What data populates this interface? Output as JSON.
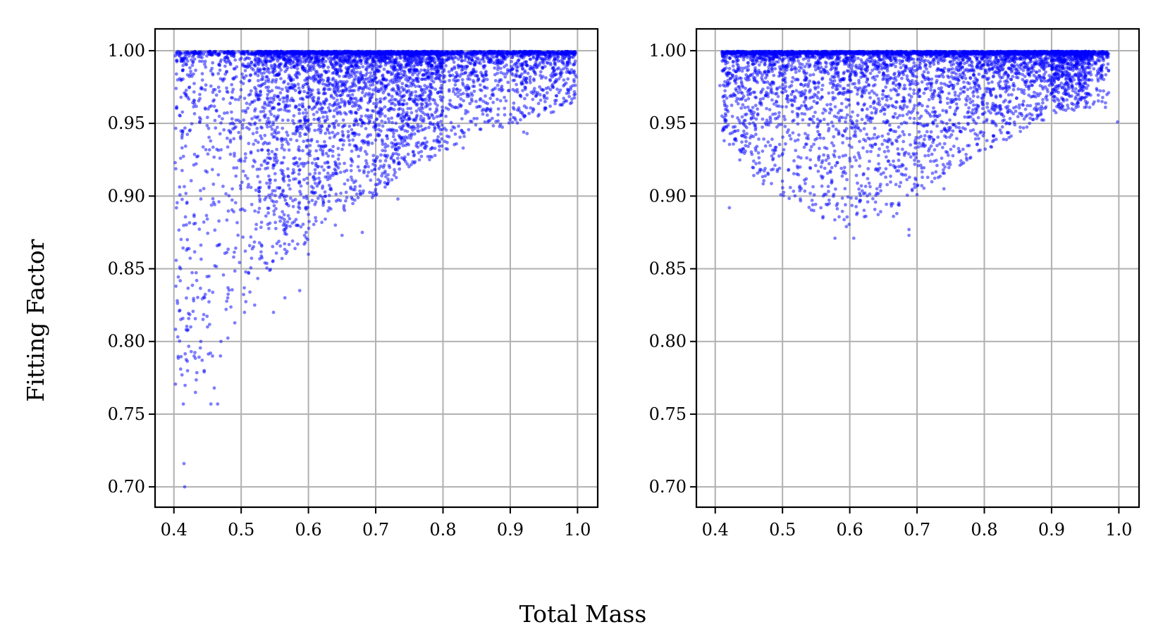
{
  "figure": {
    "xlabel": "Total Mass",
    "ylabel": "Fitting Factor"
  },
  "chart_data": [
    {
      "type": "scatter",
      "xlabel": "Total Mass",
      "ylabel": "Fitting Factor",
      "xlim": [
        0.372,
        1.03
      ],
      "ylim": [
        0.686,
        1.015
      ],
      "xticks": [
        "0.4",
        "0.5",
        "0.6",
        "0.7",
        "0.8",
        "0.9",
        "1.0"
      ],
      "yticks": [
        "0.70",
        "0.75",
        "0.80",
        "0.85",
        "0.90",
        "0.95",
        "1.00"
      ],
      "grid": true,
      "marker_color": "#0000ff",
      "marker_alpha": 0.5,
      "envelope_lower": [
        [
          0.4,
          0.76
        ],
        [
          0.42,
          0.77
        ],
        [
          0.44,
          0.77
        ],
        [
          0.46,
          0.78
        ],
        [
          0.48,
          0.8
        ],
        [
          0.5,
          0.82
        ],
        [
          0.52,
          0.84
        ],
        [
          0.55,
          0.85
        ],
        [
          0.58,
          0.86
        ],
        [
          0.62,
          0.88
        ],
        [
          0.66,
          0.89
        ],
        [
          0.7,
          0.9
        ],
        [
          0.75,
          0.92
        ],
        [
          0.8,
          0.93
        ],
        [
          0.85,
          0.945
        ],
        [
          0.9,
          0.948
        ],
        [
          0.95,
          0.955
        ],
        [
          1.0,
          0.965
        ]
      ],
      "points": [
        [
          0.415,
          0.716
        ],
        [
          0.416,
          0.7
        ],
        [
          0.432,
          0.765
        ],
        [
          0.455,
          0.757
        ],
        [
          0.465,
          0.757
        ],
        [
          0.46,
          0.768
        ],
        [
          0.402,
          0.923
        ],
        [
          0.403,
          0.838
        ],
        [
          0.405,
          0.828
        ],
        [
          0.408,
          0.821
        ],
        [
          0.41,
          0.781
        ],
        [
          0.412,
          0.777
        ],
        [
          0.414,
          0.757
        ],
        [
          0.42,
          0.87
        ],
        [
          0.425,
          0.81
        ],
        [
          0.43,
          0.79
        ],
        [
          0.44,
          0.8
        ],
        [
          0.445,
          0.78
        ],
        [
          0.45,
          0.81
        ],
        [
          0.47,
          0.8
        ],
        [
          0.48,
          0.83
        ],
        [
          0.505,
          0.82
        ],
        [
          0.52,
          0.825
        ],
        [
          0.548,
          0.82
        ],
        [
          0.565,
          0.83
        ],
        [
          0.587,
          0.835
        ],
        [
          0.6,
          0.86
        ],
        [
          0.64,
          0.88
        ],
        [
          0.65,
          0.873
        ],
        [
          0.68,
          0.875
        ],
        [
          0.733,
          0.898
        ],
        [
          0.78,
          0.925
        ],
        [
          0.83,
          0.933
        ],
        [
          0.92,
          0.944
        ],
        [
          0.925,
          0.943
        ],
        [
          0.99,
          0.975
        ],
        [
          0.998,
          0.982
        ],
        [
          0.985,
          0.992
        ]
      ],
      "count": 5000,
      "seed": 11
    },
    {
      "type": "scatter",
      "xlabel": "Total Mass",
      "ylabel": "Fitting Factor",
      "xlim": [
        0.372,
        1.03
      ],
      "ylim": [
        0.686,
        1.015
      ],
      "xticks": [
        "0.4",
        "0.5",
        "0.6",
        "0.7",
        "0.8",
        "0.9",
        "1.0"
      ],
      "yticks": [
        "0.70",
        "0.75",
        "0.80",
        "0.85",
        "0.90",
        "0.95",
        "1.00"
      ],
      "grid": true,
      "marker_color": "#0000ff",
      "marker_alpha": 0.5,
      "envelope_lower": [
        [
          0.4,
          0.945
        ],
        [
          0.42,
          0.93
        ],
        [
          0.45,
          0.915
        ],
        [
          0.48,
          0.905
        ],
        [
          0.5,
          0.9
        ],
        [
          0.53,
          0.893
        ],
        [
          0.56,
          0.885
        ],
        [
          0.6,
          0.88
        ],
        [
          0.63,
          0.885
        ],
        [
          0.66,
          0.89
        ],
        [
          0.7,
          0.9
        ],
        [
          0.74,
          0.915
        ],
        [
          0.78,
          0.925
        ],
        [
          0.82,
          0.935
        ],
        [
          0.86,
          0.945
        ],
        [
          0.9,
          0.955
        ],
        [
          0.95,
          0.96
        ],
        [
          1.0,
          0.965
        ]
      ],
      "points": [
        [
          0.421,
          0.892
        ],
        [
          0.578,
          0.871
        ],
        [
          0.595,
          0.879
        ],
        [
          0.606,
          0.871
        ],
        [
          0.688,
          0.873
        ],
        [
          0.688,
          0.877
        ],
        [
          0.56,
          0.885
        ],
        [
          0.665,
          0.886
        ],
        [
          0.67,
          0.888
        ],
        [
          0.615,
          0.897
        ],
        [
          0.545,
          0.894
        ],
        [
          0.7,
          0.901
        ],
        [
          0.74,
          0.905
        ],
        [
          0.998,
          0.951
        ],
        [
          0.98,
          0.961
        ],
        [
          0.975,
          0.965
        ],
        [
          0.407,
          0.976
        ],
        [
          0.41,
          0.955
        ]
      ],
      "count": 5000,
      "seed": 29
    }
  ]
}
